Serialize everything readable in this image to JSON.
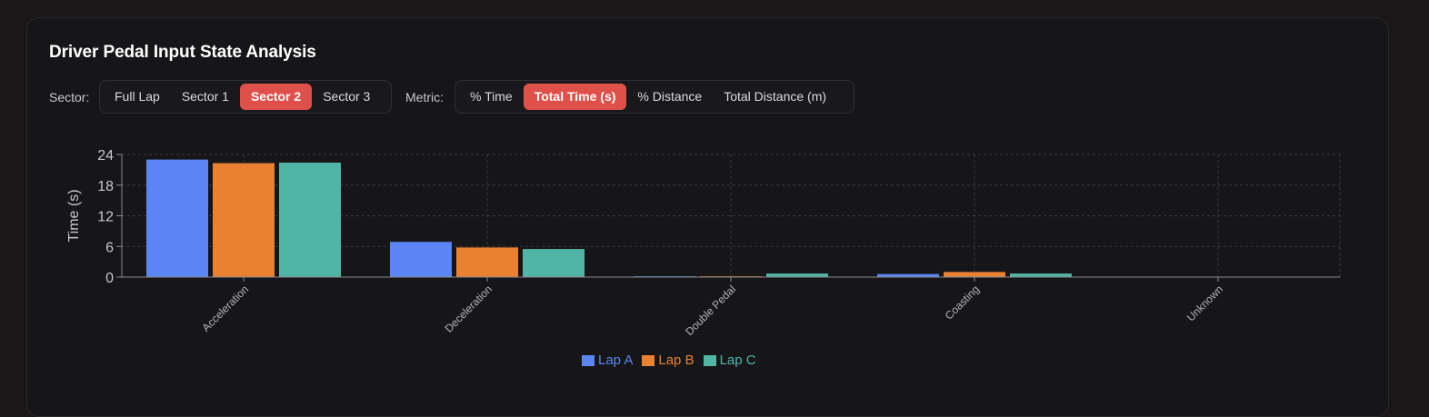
{
  "title": "Driver Pedal Input State Analysis",
  "sector": {
    "label": "Sector:",
    "options": [
      "Full Lap",
      "Sector 1",
      "Sector 2",
      "Sector 3"
    ],
    "selected": "Sector 2"
  },
  "metric": {
    "label": "Metric:",
    "options": [
      "% Time",
      "Total Time (s)",
      "% Distance",
      "Total Distance (m)"
    ],
    "selected": "Total Time (s)"
  },
  "colors": {
    "accent": "#e0504a",
    "lapA": "#5b84f5",
    "lapB": "#e98130",
    "lapC": "#51b5a6"
  },
  "chart_data": {
    "type": "bar",
    "ylabel": "Time (s)",
    "ylim": [
      0,
      24
    ],
    "yticks": [
      0,
      6,
      12,
      18,
      24
    ],
    "grid": true,
    "legend_position": "bottom",
    "categories": [
      "Acceleration",
      "Deceleration",
      "Double Pedal",
      "Coasting",
      "Unknown"
    ],
    "series": [
      {
        "name": "Lap A",
        "color": "#5b84f5",
        "values": [
          23.0,
          6.9,
          0.15,
          0.6,
          0
        ]
      },
      {
        "name": "Lap B",
        "color": "#e98130",
        "values": [
          22.3,
          5.8,
          0.15,
          1.0,
          0
        ]
      },
      {
        "name": "Lap C",
        "color": "#51b5a6",
        "values": [
          22.4,
          5.5,
          0.7,
          0.7,
          0
        ]
      }
    ]
  }
}
